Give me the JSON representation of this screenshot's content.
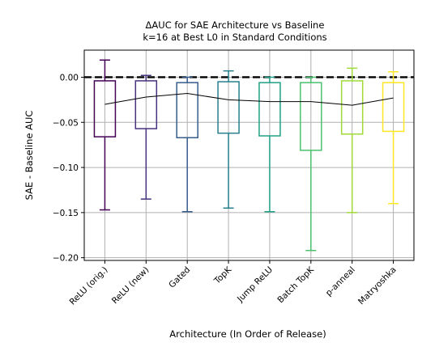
{
  "chart_data": {
    "type": "box",
    "title": "ΔAUC for SAE Architecture vs Baseline",
    "subtitle": "k=16 at Best L0 in Standard Conditions",
    "xlabel": "Architecture (In Order of Release)",
    "ylabel": "SAE - Baseline AUC",
    "ylim": [
      -0.203,
      0.03
    ],
    "yticks": [
      0.0,
      -0.05,
      -0.1,
      -0.15,
      -0.2
    ],
    "ytick_labels": [
      "0.00",
      "−0.05",
      "−0.10",
      "−0.15",
      "−0.20"
    ],
    "grid": true,
    "baseline_value": 0.0,
    "categories": [
      "ReLU (orig.)",
      "ReLU (new)",
      "Gated",
      "TopK",
      "Jump ReLU",
      "Batch TopK",
      "p-anneal",
      "Matryoshka"
    ],
    "colors": [
      "#440154",
      "#46327e",
      "#365c8d",
      "#277f8e",
      "#1fa187",
      "#4ac16d",
      "#a0da39",
      "#fde725"
    ],
    "boxes": [
      {
        "whisker_low": -0.147,
        "q1": -0.066,
        "median": -0.03,
        "q3": -0.004,
        "whisker_high": 0.019
      },
      {
        "whisker_low": -0.135,
        "q1": -0.057,
        "median": -0.022,
        "q3": -0.004,
        "whisker_high": 0.002
      },
      {
        "whisker_low": -0.149,
        "q1": -0.067,
        "median": -0.018,
        "q3": -0.006,
        "whisker_high": 0.0
      },
      {
        "whisker_low": -0.145,
        "q1": -0.062,
        "median": -0.025,
        "q3": -0.005,
        "whisker_high": 0.007
      },
      {
        "whisker_low": -0.149,
        "q1": -0.065,
        "median": -0.027,
        "q3": -0.006,
        "whisker_high": 0.0
      },
      {
        "whisker_low": -0.192,
        "q1": -0.081,
        "median": -0.027,
        "q3": -0.006,
        "whisker_high": 0.0
      },
      {
        "whisker_low": -0.15,
        "q1": -0.063,
        "median": -0.031,
        "q3": -0.004,
        "whisker_high": 0.01
      },
      {
        "whisker_low": -0.14,
        "q1": -0.06,
        "median": -0.023,
        "q3": -0.006,
        "whisker_high": 0.006
      }
    ]
  }
}
